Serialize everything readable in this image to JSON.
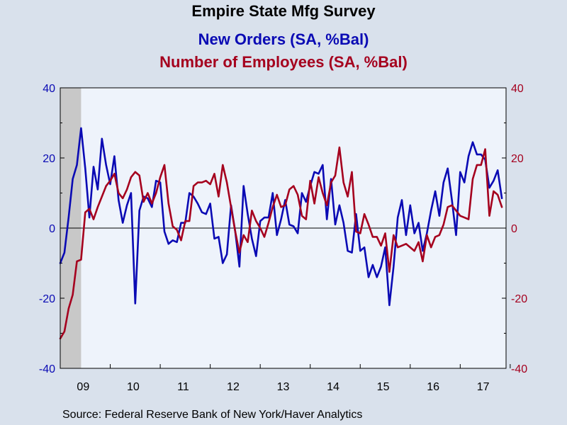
{
  "colors": {
    "background": "#d9e1ec",
    "plot_background": "#eef3fb",
    "new_orders": "#0a0ab4",
    "employees": "#a5001e",
    "shading": "#c8c8c8"
  },
  "title": "Empire State Mfg Survey",
  "source": "Source:  Federal Reserve Bank of New York/Haver Analytics",
  "chart_data": {
    "type": "line",
    "title": "Empire State Mfg Survey",
    "x_range": [
      "2009-01",
      "2017-12"
    ],
    "ylim": [
      -40,
      40
    ],
    "y_ticks": [
      "40",
      "20",
      "0",
      "-20",
      "-40"
    ],
    "x_tick_labels": [
      "09",
      "10",
      "11",
      "12",
      "13",
      "14",
      "15",
      "16",
      "17"
    ],
    "grid": false,
    "zero_line": true,
    "recession_shading": [
      "2009-01",
      "2009-06"
    ],
    "series": [
      {
        "name": "New Orders (SA, %Bal)",
        "axis": "left",
        "color": "#0a0ab4",
        "start": "2009-01",
        "values": [
          -10,
          -7,
          3,
          14,
          18,
          28.5,
          17,
          3,
          17.5,
          11,
          25.5,
          18,
          12.5,
          20.5,
          8,
          1.5,
          6.5,
          10,
          -21.5,
          5,
          9,
          8.5,
          6,
          13.5,
          13,
          -1,
          -4.5,
          -3.5,
          -4,
          1.5,
          1.5,
          10,
          9,
          7,
          4.5,
          4,
          7,
          -3,
          -2.5,
          -10,
          -7.5,
          6.5,
          -1,
          -11,
          12,
          4,
          -3,
          -8,
          2,
          3,
          3,
          10,
          -2,
          2.5,
          8,
          1,
          0.5,
          -1.5,
          10,
          7.5,
          12,
          16,
          15.5,
          18,
          2.5,
          14,
          1,
          6.5,
          1.5,
          -6.5,
          -7,
          4,
          -6.5,
          -5.5,
          -14,
          -10.5,
          -14,
          -11,
          -5.5,
          -22,
          -11,
          3,
          8,
          -2,
          6.5,
          -1.5,
          1.5,
          -6.5,
          -1.5,
          5,
          10.5,
          3.5,
          13,
          17,
          8,
          -2,
          16,
          13,
          20.5,
          24.5,
          21,
          21,
          19.5,
          11.5,
          13.5,
          16.5,
          8.5
        ]
      },
      {
        "name": "Number of Employees (SA, %Bal)",
        "axis": "right",
        "color": "#a5001e",
        "start": "2009-01",
        "values": [
          -31.5,
          -29.5,
          -23,
          -19,
          -9.5,
          -9,
          4.5,
          5.5,
          2.5,
          6,
          9,
          12,
          13.5,
          15.5,
          10,
          8.5,
          11,
          14.5,
          16,
          15,
          7.5,
          10,
          7,
          10,
          14.5,
          18,
          7,
          0.5,
          -0.5,
          -3.5,
          2,
          2,
          12,
          13,
          13,
          13.5,
          12.5,
          15.5,
          9,
          18,
          13,
          6,
          -1,
          -7,
          -2,
          -4,
          5,
          2,
          0,
          -2.5,
          1.5,
          6,
          9.5,
          6,
          6.5,
          11,
          12,
          9.5,
          3.5,
          2.5,
          13.5,
          7,
          14.5,
          10,
          6.5,
          13,
          15,
          23,
          13,
          9,
          16,
          -1,
          -1.5,
          4,
          1,
          -2.5,
          -2.5,
          -5,
          -1.5,
          -12.5,
          -2,
          -5.5,
          -5,
          -4.5,
          -5.5,
          -6.5,
          -4,
          -9.5,
          -2,
          -5.5,
          -2.5,
          -2,
          1,
          6,
          6.5,
          5,
          3.5,
          3,
          2.5,
          14,
          18,
          18,
          22.5,
          3.5,
          10.5,
          9.5,
          6
        ]
      }
    ]
  }
}
